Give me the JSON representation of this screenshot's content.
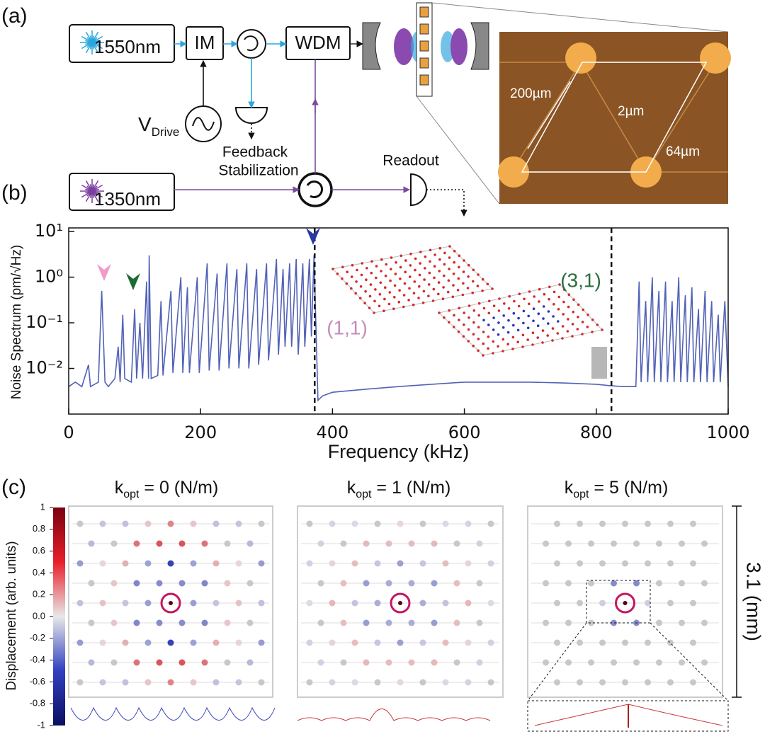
{
  "diagram": {
    "panel_a": "(a)",
    "panel_b": "(b)",
    "panel_c": "(c)",
    "laser1": "1550nm",
    "im": "IM",
    "wdm": "WDM",
    "vdrive": "V",
    "vdrive_sub": "Drive",
    "feedback": [
      "Feedback",
      "Stabilization"
    ],
    "laser2": "1350nm",
    "readout": "Readout",
    "dim_200": "200µm",
    "dim_2": "2µm",
    "dim_64": "64µm"
  },
  "chart_data": {
    "type": "line",
    "ylabel": "Noise Spectrum (pm/√Hz)",
    "xlabel": "Frequency (kHz)",
    "xlim": [
      0,
      1000
    ],
    "xticks": [
      0,
      200,
      400,
      600,
      800,
      1000
    ],
    "ylim": [
      0.001,
      12
    ],
    "log_y": true,
    "yticks": [
      {
        "value": 0.01,
        "label": "10⁻²"
      },
      {
        "value": 0.1,
        "label": "10⁻¹"
      },
      {
        "value": 1,
        "label": "10⁰"
      },
      {
        "value": 10,
        "label": "10¹"
      }
    ],
    "vlines": [
      373,
      823
    ],
    "annotations": [
      {
        "text": "(1,1)",
        "color": "#c58cbd"
      },
      {
        "text": "(3,1)",
        "color": "#2a6e3f"
      }
    ],
    "x": [
      0,
      10,
      20,
      30,
      33,
      45,
      50,
      55,
      60,
      70,
      75,
      78,
      82,
      85,
      95,
      100,
      103,
      108,
      112,
      118,
      121,
      122,
      125,
      135,
      140,
      143,
      155,
      158,
      170,
      173,
      180,
      183,
      195,
      198,
      210,
      213,
      225,
      228,
      240,
      243,
      255,
      258,
      270,
      273,
      285,
      288,
      300,
      303,
      315,
      318,
      325,
      328,
      335,
      338,
      345,
      348,
      355,
      358,
      365,
      368,
      372,
      378,
      385,
      400,
      450,
      500,
      550,
      600,
      650,
      700,
      750,
      800,
      820,
      840,
      850,
      860,
      865,
      868,
      875,
      878,
      885,
      888,
      895,
      898,
      905,
      908,
      915,
      918,
      925,
      928,
      935,
      938,
      945,
      948,
      955,
      958,
      965,
      968,
      975,
      978,
      985,
      988,
      995,
      1000
    ],
    "series": [
      {
        "name": "Noise Spectrum",
        "color": "#5262b6",
        "values": [
          0.004,
          0.005,
          0.004,
          0.012,
          0.004,
          0.005,
          0.5,
          0.005,
          0.004,
          0.006,
          0.03,
          0.005,
          0.15,
          0.006,
          0.005,
          0.2,
          0.006,
          0.1,
          0.006,
          0.8,
          0.006,
          3,
          0.006,
          0.007,
          0.3,
          0.007,
          0.5,
          0.008,
          1,
          0.008,
          0.6,
          0.008,
          1,
          0.008,
          2,
          0.009,
          1.2,
          0.009,
          2,
          0.01,
          1.5,
          0.01,
          2,
          0.01,
          1.5,
          0.012,
          2,
          0.015,
          2.5,
          0.02,
          1.5,
          0.03,
          2,
          0.03,
          2.5,
          0.02,
          2,
          0.03,
          2.5,
          0.05,
          3,
          0.002,
          0.0025,
          0.003,
          0.0035,
          0.004,
          0.0045,
          0.005,
          0.005,
          0.005,
          0.0048,
          0.0045,
          0.0042,
          0.004,
          0.004,
          0.004,
          0.8,
          0.005,
          0.3,
          0.005,
          1,
          0.005,
          0.5,
          0.005,
          0.8,
          0.005,
          0.3,
          0.005,
          1,
          0.005,
          0.4,
          0.005,
          0.6,
          0.005,
          0.2,
          0.005,
          0.5,
          0.005,
          0.3,
          0.005,
          0.15,
          0.005,
          0.3,
          0.004
        ]
      }
    ]
  },
  "panel_c": {
    "titles": [
      {
        "k": "k",
        "sub": "opt",
        "rest": " = 0 (N/m)"
      },
      {
        "k": "k",
        "sub": "opt",
        "rest": " = 1 (N/m)"
      },
      {
        "k": "k",
        "sub": "opt",
        "rest": " = 5 (N/m)"
      }
    ],
    "colorbar": {
      "label": "Displacement (arb. units)",
      "lim": [
        -1,
        1
      ],
      "ticks": [
        1,
        0.8,
        0.6,
        0.4,
        0.2,
        {
          "value": 0,
          "label": "0.0"
        },
        -0.2,
        -0.4,
        -0.6,
        -0.8,
        -1
      ]
    },
    "scale": "3.1 (mm)"
  }
}
